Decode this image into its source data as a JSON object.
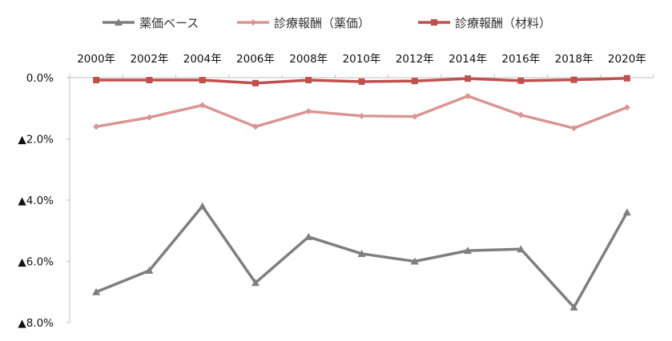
{
  "chart_data": {
    "type": "line",
    "title": "",
    "xlabel": "",
    "ylabel": "",
    "categories": [
      "2000年",
      "2002年",
      "2004年",
      "2006年",
      "2008年",
      "2010年",
      "2012年",
      "2014年",
      "2016年",
      "2018年",
      "2020年"
    ],
    "y_tick_labels": [
      "0.0%",
      "▲2.0%",
      "▲4.0%",
      "▲6.0%",
      "▲8.0%"
    ],
    "ylim": [
      -8.0,
      0.0
    ],
    "y_axis_inverted_top": true,
    "grid": false,
    "legend_position": "top",
    "series": [
      {
        "name": "薬価ベース",
        "color": "#7f7f7f",
        "marker": "triangle",
        "values": [
          -7.0,
          -6.3,
          -4.2,
          -6.7,
          -5.2,
          -5.75,
          -6.0,
          -5.65,
          -5.6,
          -7.5,
          -4.4
        ]
      },
      {
        "name": "診療報酬（薬価）",
        "color": "#d99694",
        "marker": "diamond",
        "values": [
          -1.6,
          -1.3,
          -0.9,
          -1.6,
          -1.1,
          -1.25,
          -1.27,
          -0.6,
          -1.22,
          -1.65,
          -0.97
        ]
      },
      {
        "name": "診療報酬（材料）",
        "color": "#c0504d",
        "marker": "square",
        "values": [
          -0.08,
          -0.08,
          -0.08,
          -0.18,
          -0.08,
          -0.13,
          -0.11,
          -0.03,
          -0.1,
          -0.07,
          -0.02
        ]
      }
    ]
  }
}
